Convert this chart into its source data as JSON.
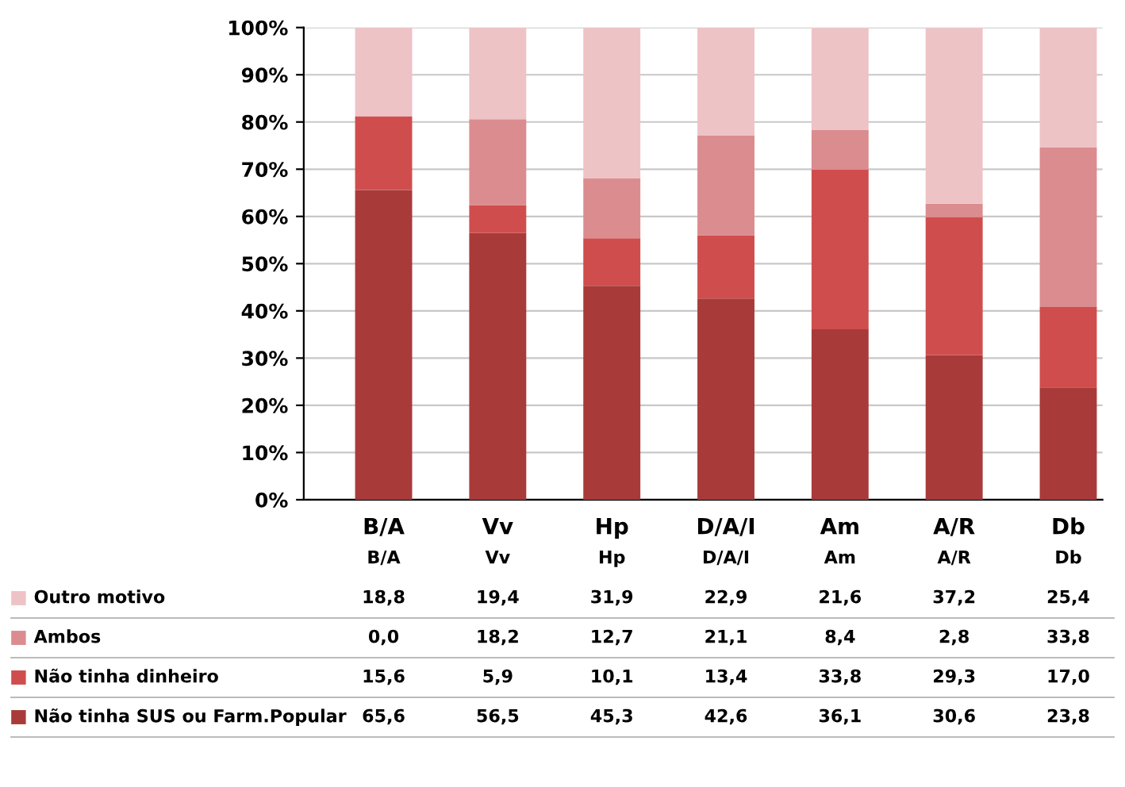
{
  "chart_data": {
    "type": "bar",
    "stacked": true,
    "categories": [
      "B/A",
      "Vv",
      "Hp",
      "D/A/I",
      "Am",
      "A/R",
      "Db"
    ],
    "series": [
      {
        "name": "Não tinha SUS ou Farm.Popular",
        "color": "#a93a3a",
        "values": [
          65.6,
          56.5,
          45.3,
          42.6,
          36.1,
          30.6,
          23.8
        ],
        "value_labels": [
          "65,6",
          "56,5",
          "45,3",
          "42,6",
          "36,1",
          "30,6",
          "23,8"
        ]
      },
      {
        "name": "Não tinha dinheiro",
        "color": "#d04d4d",
        "values": [
          15.6,
          5.9,
          10.1,
          13.4,
          33.8,
          29.3,
          17.0
        ],
        "value_labels": [
          "15,6",
          "5,9",
          "10,1",
          "13,4",
          "33,8",
          "29,3",
          "17,0"
        ]
      },
      {
        "name": "Ambos",
        "color": "#db8c8f",
        "values": [
          0.0,
          18.2,
          12.7,
          21.1,
          8.4,
          2.8,
          33.8
        ],
        "value_labels": [
          "0,0",
          "18,2",
          "12,7",
          "21,1",
          "8,4",
          "2,8",
          "33,8"
        ]
      },
      {
        "name": "Outro motivo",
        "color": "#eec3c6",
        "values": [
          18.8,
          19.4,
          31.9,
          22.9,
          21.6,
          37.2,
          25.4
        ],
        "value_labels": [
          "18,8",
          "19,4",
          "31,9",
          "22,9",
          "21,6",
          "37,2",
          "25,4"
        ]
      }
    ],
    "ylim": [
      0,
      100
    ],
    "yticks": [
      {
        "value": 0,
        "label": "0%"
      },
      {
        "value": 10,
        "label": "10%"
      },
      {
        "value": 20,
        "label": "20%"
      },
      {
        "value": 30,
        "label": "30%"
      },
      {
        "value": 40,
        "label": "40%"
      },
      {
        "value": 50,
        "label": "50%"
      },
      {
        "value": 60,
        "label": "60%"
      },
      {
        "value": 70,
        "label": "70%"
      },
      {
        "value": 80,
        "label": "80%"
      },
      {
        "value": 90,
        "label": "90%"
      },
      {
        "value": 100,
        "label": "100%"
      }
    ],
    "grid": "y",
    "legend": "bottom"
  }
}
